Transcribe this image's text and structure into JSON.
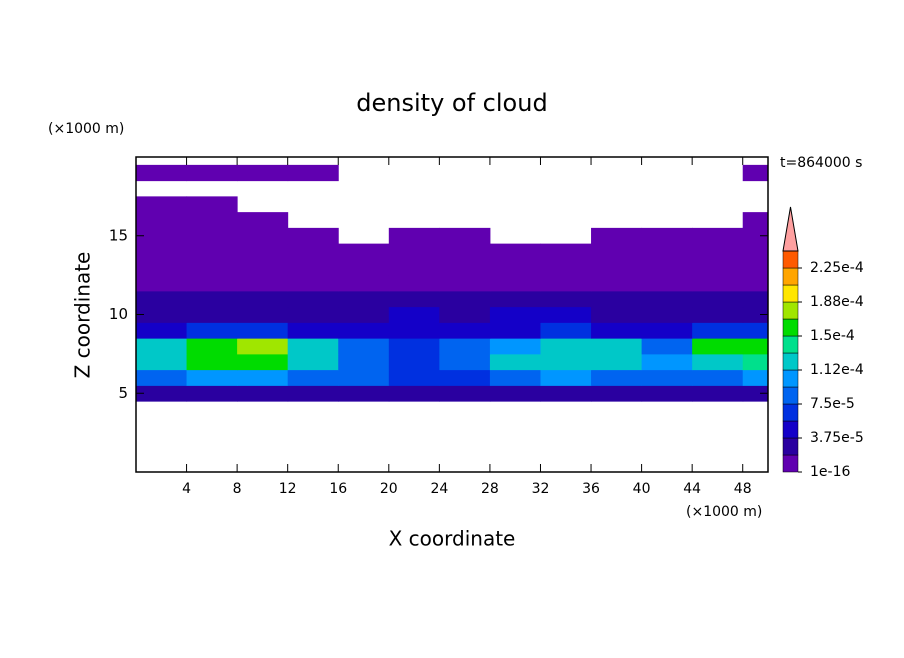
{
  "chart_data": {
    "type": "contour",
    "title": "density of cloud",
    "time_label": "t=864000 s",
    "x_label": "X coordinate",
    "y_label": "Z coordinate",
    "x_unit": "(×1000 m)",
    "y_unit": "(×1000 m)",
    "xlim": [
      0,
      50
    ],
    "xticks": [
      4,
      8,
      12,
      16,
      20,
      24,
      28,
      32,
      36,
      40,
      44,
      48
    ],
    "ylim": [
      0,
      20
    ],
    "yticks": [
      5,
      10,
      15
    ],
    "x": [
      2,
      6,
      10,
      14,
      18,
      22,
      26,
      30,
      34,
      38,
      42,
      46,
      50
    ],
    "z": [
      5,
      6,
      7,
      8,
      9,
      10,
      11,
      12,
      13,
      14,
      15,
      16,
      17,
      18,
      19
    ],
    "values": [
      [
        3e-05,
        3e-05,
        3e-05,
        3e-05,
        3e-05,
        2e-05,
        2e-05,
        3e-05,
        3e-05,
        3e-05,
        3e-05,
        3e-05,
        3e-05
      ],
      [
        9e-05,
        0.0001,
        0.0001,
        9e-05,
        8e-05,
        6e-05,
        7e-05,
        9e-05,
        0.0001,
        9e-05,
        8e-05,
        9e-05,
        0.0001
      ],
      [
        0.00013,
        0.00015,
        0.00015,
        0.00013,
        9e-05,
        7e-05,
        9e-05,
        0.00012,
        0.00013,
        0.00012,
        0.0001,
        0.00013,
        0.00014
      ],
      [
        0.00012,
        0.00016,
        0.00017,
        0.00013,
        8e-05,
        6e-05,
        8e-05,
        0.0001,
        0.00012,
        0.00012,
        9e-05,
        0.00015,
        0.00016
      ],
      [
        5e-05,
        6e-05,
        6e-05,
        5e-05,
        4e-05,
        4e-05,
        5e-05,
        5e-05,
        6e-05,
        5e-05,
        5e-05,
        6e-05,
        6e-05
      ],
      [
        3e-05,
        3e-05,
        3e-05,
        3e-05,
        3e-05,
        4e-05,
        3e-05,
        4e-05,
        4e-05,
        3e-05,
        3e-05,
        3e-05,
        3e-05
      ],
      [
        2e-05,
        2e-05,
        2e-05,
        2e-05,
        2e-05,
        2e-05,
        2e-05,
        2e-05,
        2e-05,
        2e-05,
        2e-05,
        2e-05,
        2e-05
      ],
      [
        1.2e-05,
        1.2e-05,
        1.2e-05,
        1e-05,
        1e-05,
        1.2e-05,
        1e-05,
        1.2e-05,
        1e-05,
        1e-05,
        1.2e-05,
        1.2e-05,
        1.2e-05
      ],
      [
        8e-06,
        8e-06,
        8e-06,
        8e-06,
        8e-06,
        8e-06,
        8e-06,
        8e-06,
        8e-06,
        8e-06,
        8e-06,
        8e-06,
        8e-06
      ],
      [
        5e-06,
        5e-06,
        5e-06,
        5e-06,
        5e-06,
        5e-06,
        5e-06,
        5e-06,
        5e-06,
        5e-06,
        5e-06,
        5e-06,
        5e-06
      ],
      [
        5e-06,
        5e-06,
        5e-06,
        5e-06,
        null,
        5e-06,
        5e-06,
        null,
        null,
        5e-06,
        5e-06,
        5e-06,
        5e-06
      ],
      [
        5e-06,
        5e-06,
        5e-06,
        null,
        null,
        null,
        null,
        null,
        null,
        null,
        null,
        null,
        5e-06
      ],
      [
        5e-06,
        5e-06,
        null,
        null,
        null,
        null,
        null,
        null,
        null,
        null,
        null,
        null,
        null
      ],
      [
        null,
        null,
        null,
        null,
        null,
        null,
        null,
        null,
        null,
        null,
        null,
        null,
        null
      ],
      [
        5e-06,
        5e-06,
        5e-06,
        5e-06,
        null,
        null,
        null,
        null,
        null,
        null,
        null,
        null,
        5e-06
      ]
    ],
    "levels": [
      1e-16,
      1.875e-05,
      3.75e-05,
      5.625e-05,
      7.5e-05,
      9.375e-05,
      0.0001125,
      0.00013125,
      0.00015,
      0.00016875,
      0.0001875,
      0.00020625,
      0.000225,
      0.00024375
    ],
    "colors": [
      "#6000b0",
      "#2a00a0",
      "#1400c8",
      "#0030e0",
      "#0064f0",
      "#0096ff",
      "#00c8c8",
      "#00e08c",
      "#00dc00",
      "#a0e600",
      "#ffe600",
      "#ffa500",
      "#ff5a00"
    ],
    "extend_color": "#ffa0a0",
    "colorbar_ticks": [
      {
        "value": 1e-16,
        "label": "1e-16"
      },
      {
        "value": 3.75e-05,
        "label": "3.75e-5"
      },
      {
        "value": 7.5e-05,
        "label": "7.5e-5"
      },
      {
        "value": 0.0001125,
        "label": "1.12e-4"
      },
      {
        "value": 0.00015,
        "label": "1.5e-4"
      },
      {
        "value": 0.0001875,
        "label": "1.88e-4"
      },
      {
        "value": 0.000225,
        "label": "2.25e-4"
      }
    ]
  }
}
